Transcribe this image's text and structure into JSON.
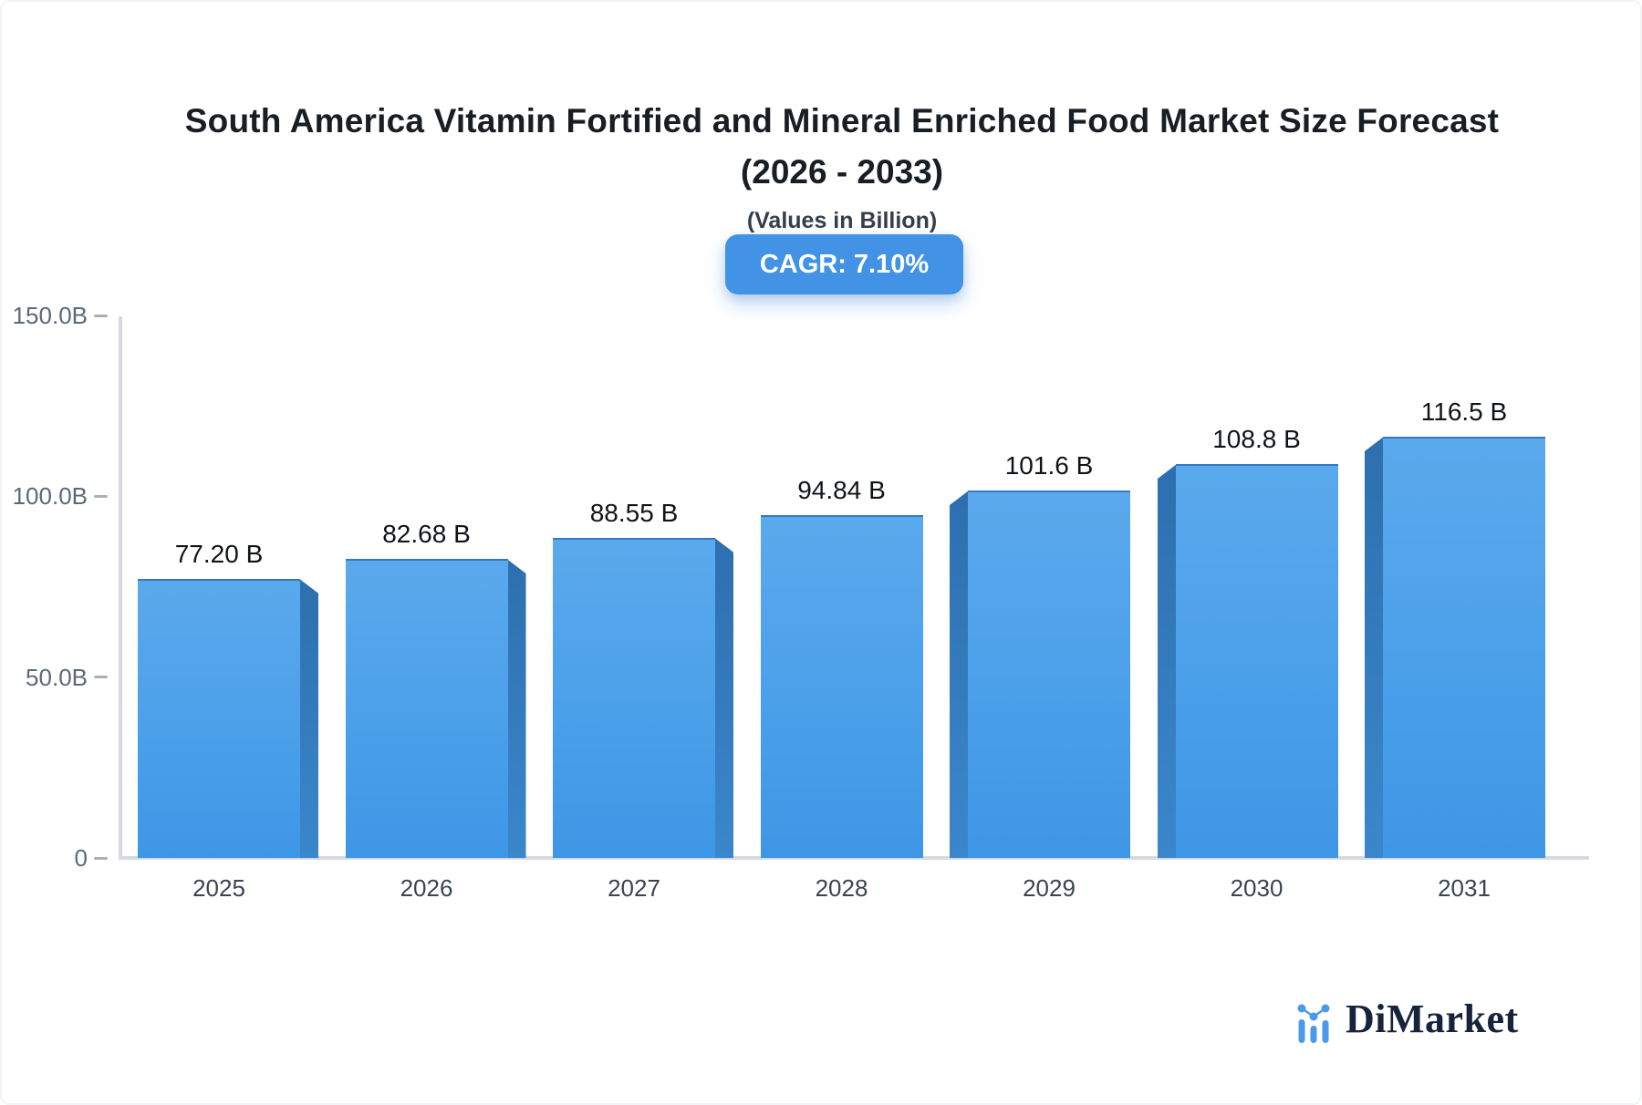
{
  "header": {
    "title_line1": "South America Vitamin Fortified and Mineral Enriched Food Market Size Forecast",
    "title_line2": "(2026 - 2033)",
    "subtitle": "(Values in Billion)",
    "cagr_badge": "CAGR: 7.10%"
  },
  "chart_data": {
    "type": "bar",
    "title": "South America Vitamin Fortified and Mineral Enriched Food Market Size Forecast (2026 - 2033)",
    "subtitle": "(Values in Billion)",
    "unit": "Billion",
    "cagr": "7.10%",
    "categories": [
      "2025",
      "2026",
      "2027",
      "2028",
      "2029",
      "2030",
      "2031"
    ],
    "values": [
      77.2,
      82.68,
      88.55,
      94.84,
      101.6,
      108.8,
      116.5
    ],
    "value_labels": [
      "77.20 B",
      "82.68 B",
      "88.55 B",
      "94.84 B",
      "101.6 B",
      "108.8 B",
      "116.5 B"
    ],
    "ylim": [
      0,
      150
    ],
    "y_ticks": [
      {
        "label": "150.0B",
        "value": 150
      },
      {
        "label": "100.0B",
        "value": 100
      },
      {
        "label": "50.0B",
        "value": 50
      },
      {
        "label": "0",
        "value": 0
      }
    ],
    "xlabel": "",
    "ylabel": "",
    "grid": false,
    "legend": "none",
    "style": "3d-bars",
    "colors": {
      "bar_face_top": "#5BA9ED",
      "bar_face_bottom": "#3E96E6",
      "bar_top_edge": "#3579BE",
      "bar_side": "#2D6FAE",
      "axis_line": "#D6DADE",
      "tick": "#A8B0BA",
      "y_label_text": "#5C6978",
      "x_label_text": "#3A4450",
      "value_label_text": "#101418",
      "badge_bg": "#4293E6",
      "badge_text": "#FFFFFF"
    }
  },
  "branding": {
    "logo_text": "DiMarket",
    "logo_icon": "bar-chart-logo-icon",
    "logo_icon_color": "#4A9AE9",
    "logo_text_color": "#16233D"
  }
}
